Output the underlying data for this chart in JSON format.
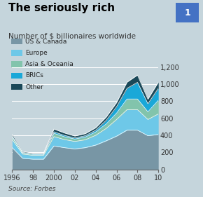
{
  "title": "The seriously rich",
  "subtitle": "Number of $ billionaires worldwide",
  "source": "Source: Forbes",
  "chart_number": "1",
  "years": [
    1996,
    1997,
    1998,
    1999,
    2000,
    2001,
    2002,
    2003,
    2004,
    2005,
    2006,
    2007,
    2008,
    2009,
    2010
  ],
  "series": {
    "US & Canada": [
      255,
      130,
      120,
      120,
      275,
      255,
      240,
      255,
      285,
      335,
      390,
      460,
      460,
      395,
      410
    ],
    "Europe": [
      95,
      50,
      45,
      45,
      110,
      95,
      88,
      92,
      115,
      145,
      195,
      240,
      240,
      190,
      240
    ],
    "Asia & Oceania": [
      28,
      14,
      11,
      11,
      38,
      33,
      28,
      32,
      38,
      52,
      75,
      125,
      125,
      90,
      160
    ],
    "BRICs": [
      13,
      7,
      6,
      6,
      18,
      16,
      13,
      16,
      22,
      42,
      75,
      125,
      195,
      95,
      140
    ],
    "Other": [
      22,
      10,
      9,
      9,
      32,
      28,
      22,
      24,
      28,
      38,
      48,
      72,
      85,
      52,
      72
    ]
  },
  "colors": {
    "US & Canada": "#7896a5",
    "Europe": "#6ec8e8",
    "Asia & Oceania": "#82c4ac",
    "BRICs": "#1aa8d8",
    "Other": "#1a4858"
  },
  "ylim": [
    0,
    1200
  ],
  "yticks": [
    0,
    200,
    400,
    600,
    800,
    1000,
    1200
  ],
  "background_color": "#c5d5dc",
  "title_fontsize": 11,
  "subtitle_fontsize": 7.5,
  "source_fontsize": 6.5,
  "tick_fontsize": 7,
  "legend_fontsize": 6.5,
  "legend_order": [
    "US & Canada",
    "Europe",
    "Asia & Oceania",
    "BRICs",
    "Other"
  ]
}
